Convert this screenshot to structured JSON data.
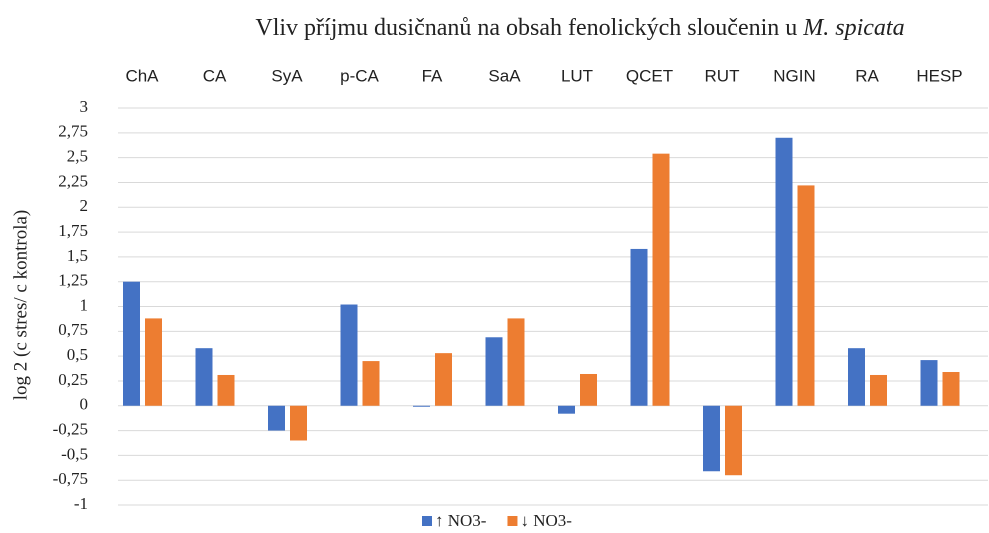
{
  "chart_data": {
    "type": "bar",
    "title": "Vliv příjmu dusičnanů na obsah fenolických sloučenin u",
    "title_italic": "M. spicata",
    "y_label": "log 2 (c stres/ c kontrola)",
    "categories": [
      "ChA",
      "CA",
      "SyA",
      "p-CA",
      "FA",
      "SaA",
      "LUT",
      "QCET",
      "RUT",
      "NGIN",
      "RA",
      "HESP"
    ],
    "series": [
      {
        "name": "↑ NO3-",
        "color": "#4472c4",
        "values": [
          1.25,
          0.58,
          -0.25,
          1.02,
          -0.01,
          0.69,
          -0.08,
          1.58,
          -0.66,
          2.7,
          0.58,
          0.46
        ]
      },
      {
        "name": "↓ NO3-",
        "color": "#ed7d31",
        "values": [
          0.88,
          0.31,
          -0.35,
          0.45,
          0.53,
          0.88,
          0.32,
          2.54,
          -0.7,
          2.22,
          0.31,
          0.34
        ]
      }
    ],
    "ylim": [
      -1,
      3
    ],
    "yticks": [
      -1,
      {
        "value": -0.75,
        "label": "-0,75"
      },
      {
        "value": -0.5,
        "label": "-0,5"
      },
      {
        "value": -0.25,
        "label": "-0,25"
      },
      0,
      {
        "value": 0.25,
        "label": "0,25"
      },
      {
        "value": 0.5,
        "label": "0,5"
      },
      {
        "value": 0.75,
        "label": "0,75"
      },
      1,
      {
        "value": 1.25,
        "label": "1,25"
      },
      {
        "value": 1.5,
        "label": "1,5"
      },
      {
        "value": 1.75,
        "label": "1,75"
      },
      2,
      {
        "value": 2.25,
        "label": "2,25"
      },
      {
        "value": 2.5,
        "label": "2,5"
      },
      {
        "value": 2.75,
        "label": "2,75"
      },
      3
    ],
    "grid": true,
    "legend": "bottom"
  }
}
